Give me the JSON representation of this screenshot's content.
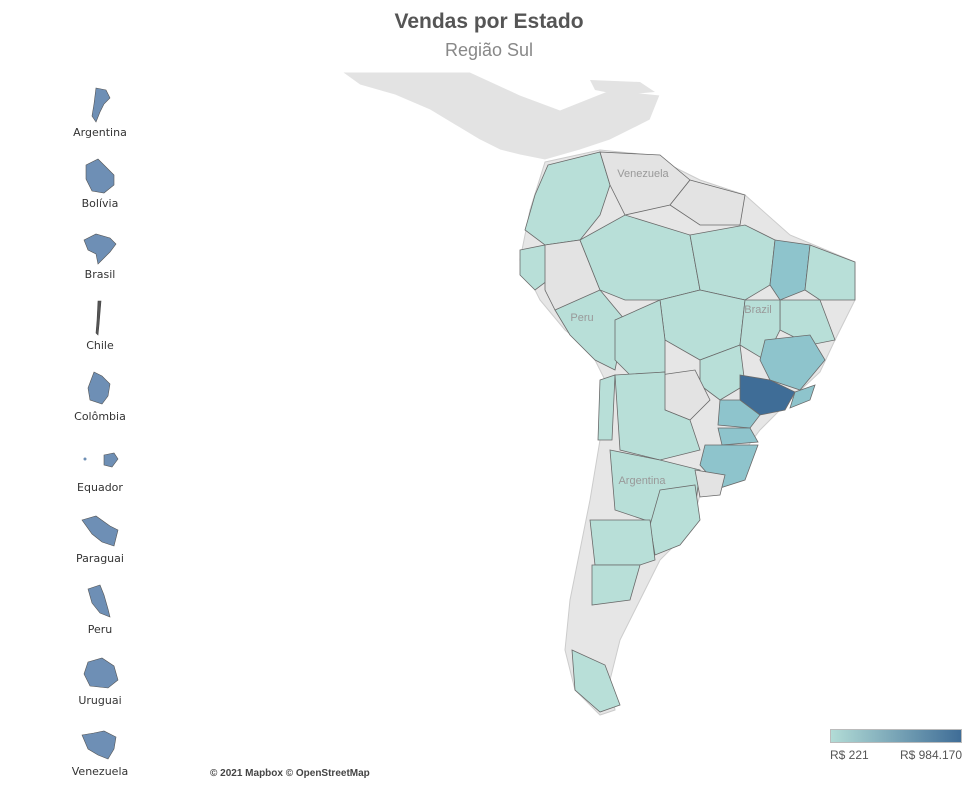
{
  "title": "Vendas por Estado",
  "subtitle": "Região Sul",
  "countries": [
    {
      "label": "Argentina"
    },
    {
      "label": "Bolívia"
    },
    {
      "label": "Brasil"
    },
    {
      "label": "Chile"
    },
    {
      "label": "Colômbia"
    },
    {
      "label": "Equador"
    },
    {
      "label": "Paraguai"
    },
    {
      "label": "Peru"
    },
    {
      "label": "Uruguai"
    },
    {
      "label": "Venezuela"
    }
  ],
  "map_labels": {
    "venezuela": "Venezuela",
    "peru": "Peru",
    "brazil": "Brazil",
    "argentina": "Argentina"
  },
  "attribution": "© 2021 Mapbox © OpenStreetMap",
  "legend": {
    "min_label": "R$ 221",
    "max_label": "R$ 984.170",
    "color_low": "#b2dcd6",
    "color_high": "#3f6d97"
  },
  "colors": {
    "region_default": "#b8dfd8",
    "region_mid": "#8ec4cc",
    "region_high": "#3f6d97",
    "land": "#e3e3e3",
    "border": "#5a5a5a",
    "icon_fill": "#6e8fb5"
  }
}
